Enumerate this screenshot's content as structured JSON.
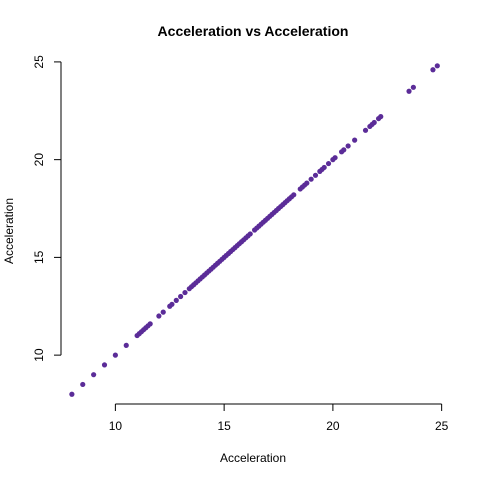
{
  "chart_data": {
    "type": "scatter",
    "title": "Acceleration vs Acceleration",
    "xlabel": "Acceleration",
    "ylabel": "Acceleration",
    "xlim": [
      7.5,
      25.2
    ],
    "ylim": [
      7.5,
      25.2
    ],
    "xticks": [
      10,
      15,
      20,
      25
    ],
    "yticks": [
      10,
      15,
      20,
      25
    ],
    "grid": false,
    "point_color": "#5b2c98",
    "x": [
      8.0,
      8.5,
      9.0,
      9.5,
      10.0,
      10.5,
      11.0,
      11.1,
      11.2,
      11.3,
      11.4,
      11.5,
      11.6,
      12.0,
      12.2,
      12.5,
      12.6,
      12.8,
      13.0,
      13.2,
      13.4,
      13.5,
      13.6,
      13.7,
      13.8,
      13.9,
      14.0,
      14.1,
      14.2,
      14.3,
      14.4,
      14.5,
      14.6,
      14.7,
      14.8,
      14.9,
      15.0,
      15.1,
      15.2,
      15.3,
      15.4,
      15.5,
      15.6,
      15.7,
      15.8,
      15.9,
      16.0,
      16.1,
      16.2,
      16.4,
      16.5,
      16.6,
      16.7,
      16.8,
      16.9,
      17.0,
      17.1,
      17.2,
      17.3,
      17.4,
      17.5,
      17.6,
      17.7,
      17.8,
      17.9,
      18.0,
      18.1,
      18.2,
      18.5,
      18.6,
      18.7,
      18.8,
      19.0,
      19.2,
      19.4,
      19.5,
      19.6,
      19.8,
      20.0,
      20.1,
      20.4,
      20.5,
      20.7,
      21.0,
      21.5,
      21.7,
      21.8,
      21.9,
      22.1,
      22.2,
      23.5,
      23.7,
      24.6,
      24.8
    ],
    "y": [
      8.0,
      8.5,
      9.0,
      9.5,
      10.0,
      10.5,
      11.0,
      11.1,
      11.2,
      11.3,
      11.4,
      11.5,
      11.6,
      12.0,
      12.2,
      12.5,
      12.6,
      12.8,
      13.0,
      13.2,
      13.4,
      13.5,
      13.6,
      13.7,
      13.8,
      13.9,
      14.0,
      14.1,
      14.2,
      14.3,
      14.4,
      14.5,
      14.6,
      14.7,
      14.8,
      14.9,
      15.0,
      15.1,
      15.2,
      15.3,
      15.4,
      15.5,
      15.6,
      15.7,
      15.8,
      15.9,
      16.0,
      16.1,
      16.2,
      16.4,
      16.5,
      16.6,
      16.7,
      16.8,
      16.9,
      17.0,
      17.1,
      17.2,
      17.3,
      17.4,
      17.5,
      17.6,
      17.7,
      17.8,
      17.9,
      18.0,
      18.1,
      18.2,
      18.5,
      18.6,
      18.7,
      18.8,
      19.0,
      19.2,
      19.4,
      19.5,
      19.6,
      19.8,
      20.0,
      20.1,
      20.4,
      20.5,
      20.7,
      21.0,
      21.5,
      21.7,
      21.8,
      21.9,
      22.1,
      22.2,
      23.5,
      23.7,
      24.6,
      24.8
    ]
  }
}
